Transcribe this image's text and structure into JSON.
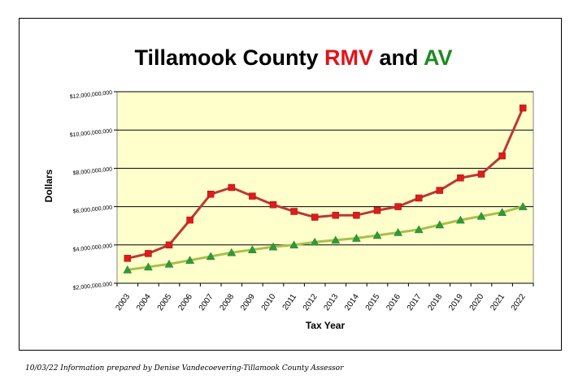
{
  "title": {
    "prefix": "Tillamook County ",
    "rmv": "RMV",
    "middle": " and ",
    "av": "AV"
  },
  "footer": "10/03/22 Information prepared by Denise Vandecoevering-Tillamook County Assessor",
  "colors": {
    "rmv": "#cc2222",
    "av": "#a8c04a",
    "av_marker": "#2e9b3a",
    "plot_bg": "#ffffcc",
    "title_rmv": "#e0141a",
    "title_av": "#1f8a22"
  },
  "chart_data": {
    "type": "line",
    "ylabel": "Dollars",
    "xlabel": "Tax Year",
    "ylim": [
      2000000000,
      12000000000
    ],
    "yticks": [
      2000000000,
      4000000000,
      6000000000,
      8000000000,
      10000000000,
      12000000000
    ],
    "ytick_labels": [
      "$2,000,000,000",
      "$4,000,000,000",
      "$6,000,000,000",
      "$8,000,000,000",
      "$10,000,000,000",
      "$12,000,000,000"
    ],
    "grid": "horizontal",
    "categories": [
      "2003",
      "2004",
      "2005",
      "2006",
      "2007",
      "2008",
      "2009",
      "2010",
      "2011",
      "2012",
      "2013",
      "2014",
      "2015",
      "2016",
      "2017",
      "2018",
      "2019",
      "2020",
      "2021",
      "2022"
    ],
    "series": [
      {
        "key": "rmv",
        "marker": "square",
        "values": [
          3300000000,
          3550000000,
          4000000000,
          5300000000,
          6650000000,
          7000000000,
          6550000000,
          6100000000,
          5750000000,
          5450000000,
          5550000000,
          5550000000,
          5800000000,
          6000000000,
          6450000000,
          6850000000,
          7500000000,
          7700000000,
          8650000000,
          11150000000
        ]
      },
      {
        "key": "av",
        "marker": "triangle",
        "values": [
          2700000000,
          2850000000,
          3000000000,
          3200000000,
          3400000000,
          3600000000,
          3750000000,
          3900000000,
          4000000000,
          4150000000,
          4250000000,
          4350000000,
          4500000000,
          4650000000,
          4800000000,
          5050000000,
          5300000000,
          5500000000,
          5700000000,
          6000000000
        ]
      }
    ]
  }
}
